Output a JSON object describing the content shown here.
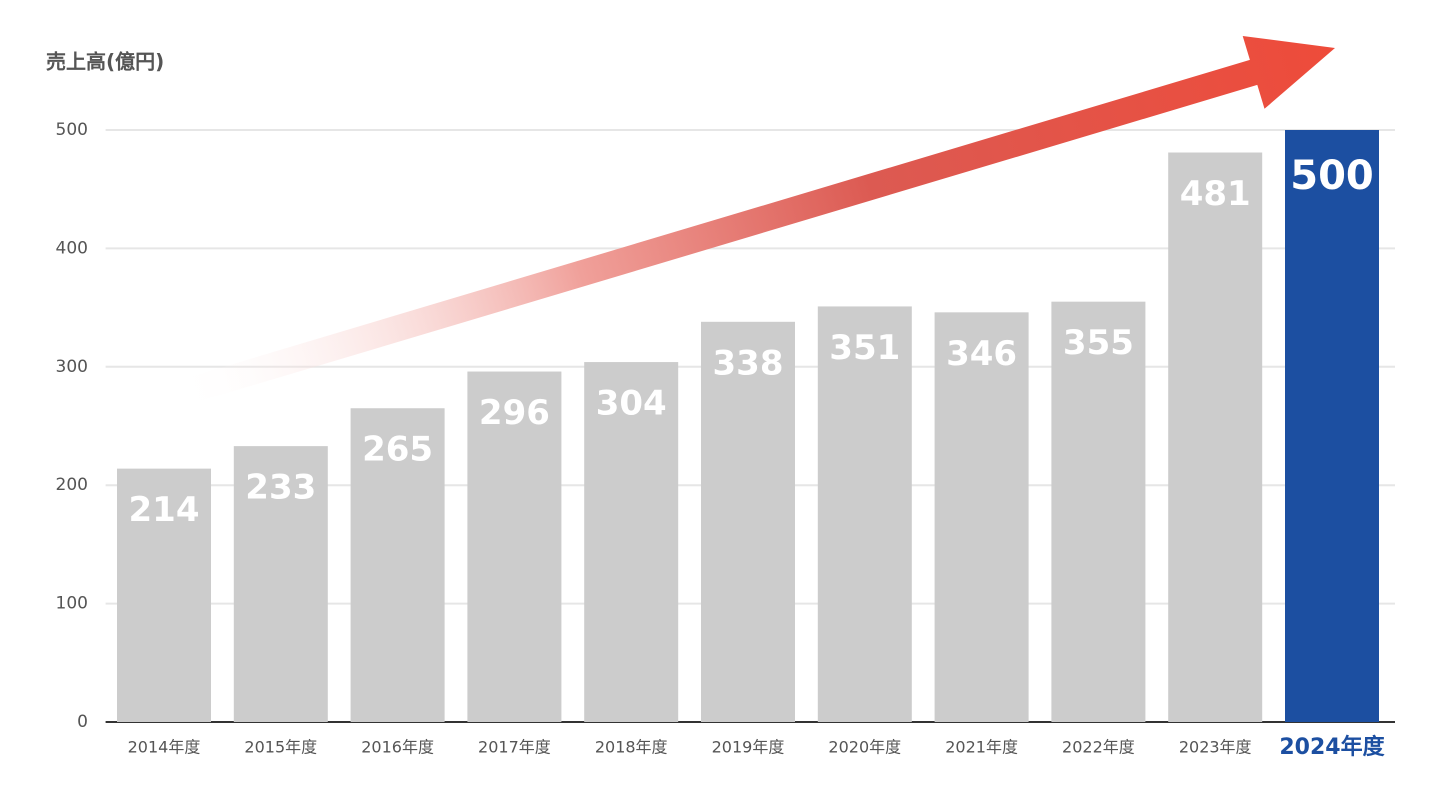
{
  "chart_data": {
    "type": "bar",
    "y_label": "売上高(億円)",
    "categories": [
      "2014年度",
      "2015年度",
      "2016年度",
      "2017年度",
      "2018年度",
      "2019年度",
      "2020年度",
      "2021年度",
      "2022年度",
      "2023年度",
      "2024年度"
    ],
    "values": [
      214,
      233,
      265,
      296,
      304,
      338,
      351,
      346,
      355,
      481,
      500
    ],
    "colors": [
      "#cccccc",
      "#cccccc",
      "#cccccc",
      "#cccccc",
      "#cccccc",
      "#cccccc",
      "#cccccc",
      "#cccccc",
      "#cccccc",
      "#cccccc",
      "#1c4fa1"
    ],
    "ylim": [
      0,
      500
    ],
    "yticks": [
      0,
      100,
      200,
      300,
      400,
      500
    ],
    "grid": true
  }
}
